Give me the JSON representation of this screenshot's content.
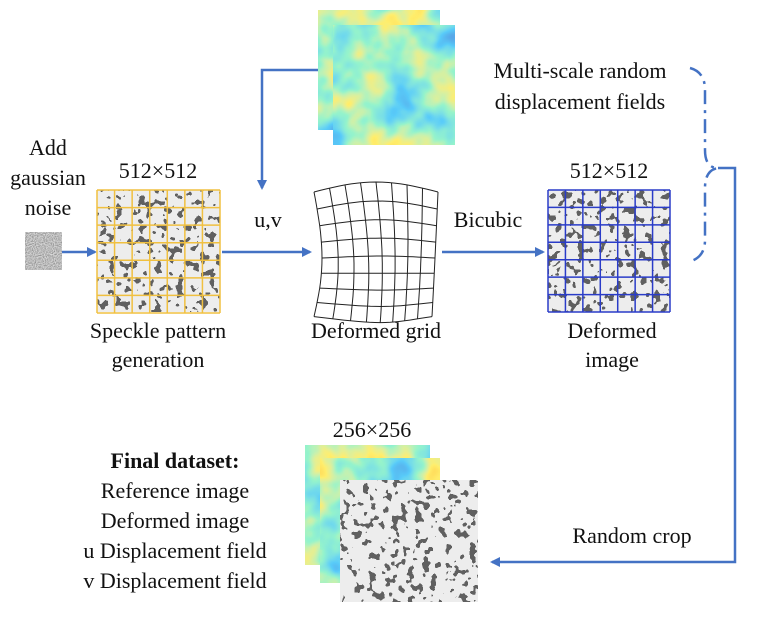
{
  "add_noise_label": [
    "Add",
    "gaussian",
    "noise"
  ],
  "speckle": {
    "size": "512×512",
    "label": [
      "Speckle pattern",
      "generation"
    ]
  },
  "uv_label": "u,v",
  "displacement_fields_label": [
    "Multi-scale random",
    "displacement fields"
  ],
  "deformed_grid_label": "Deformed grid",
  "bicubic_label": "Bicubic",
  "deformed_image": {
    "size": "512×512",
    "label": [
      "Deformed",
      "image"
    ]
  },
  "random_crop_label": "Random crop",
  "final_dataset": {
    "size": "256×256",
    "title": "Final dataset:",
    "items": [
      "Reference image",
      "Deformed image",
      "u Displacement field",
      "v Displacement field"
    ]
  }
}
